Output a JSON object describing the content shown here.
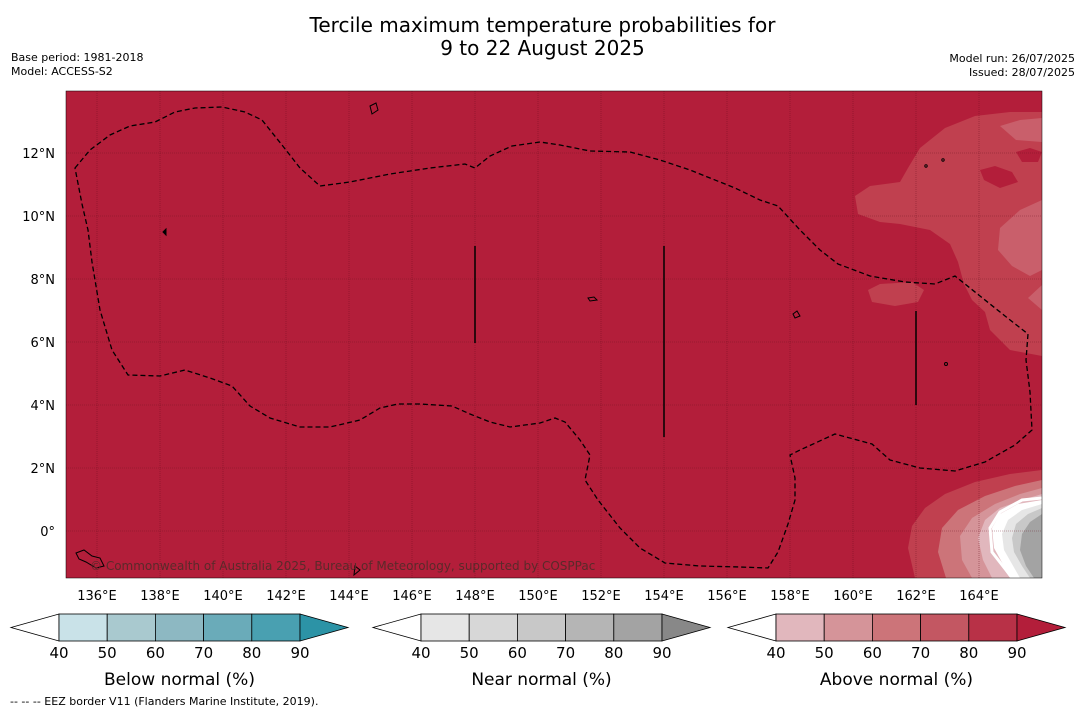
{
  "title": {
    "line1": "Tercile maximum temperature probabilities for",
    "line2": "9 to 22 August 2025"
  },
  "meta_left": {
    "base_period": "Base period: 1981-2018",
    "model": "Model: ACCESS-S2"
  },
  "meta_right": {
    "model_run": "Model run: 26/07/2025",
    "issued": "Issued: 28/07/2025"
  },
  "map": {
    "background_color": "#b31e3a",
    "lat_labels": [
      "12°N",
      "10°N",
      "8°N",
      "6°N",
      "4°N",
      "2°N",
      "0°"
    ],
    "lon_labels": [
      "136°E",
      "138°E",
      "140°E",
      "142°E",
      "144°E",
      "146°E",
      "148°E",
      "150°E",
      "152°E",
      "154°E",
      "156°E",
      "158°E",
      "160°E",
      "162°E",
      "164°E"
    ],
    "copyright": "© Commonwealth of Australia 2025, Bureau of Meteorology, supported by COSPPac"
  },
  "colorbars": [
    {
      "label": "Below normal (%)",
      "ticks": [
        "40",
        "50",
        "60",
        "70",
        "80",
        "90"
      ],
      "colors": [
        "#ffffff",
        "#c9e2e8",
        "#a9c9cf",
        "#8db8c2",
        "#6aabb9",
        "#49a0b1",
        "#2c93a6"
      ]
    },
    {
      "label": "Near normal (%)",
      "ticks": [
        "40",
        "50",
        "60",
        "70",
        "80",
        "90"
      ],
      "colors": [
        "#ffffff",
        "#e6e6e6",
        "#d7d7d7",
        "#c8c8c8",
        "#b5b5b5",
        "#a3a3a3",
        "#888888"
      ]
    },
    {
      "label": "Above normal (%)",
      "ticks": [
        "40",
        "50",
        "60",
        "70",
        "80",
        "90"
      ],
      "colors": [
        "#ffffff",
        "#e1b7bd",
        "#d59499",
        "#cc7479",
        "#c35762",
        "#b83147",
        "#b31e3a"
      ]
    }
  ],
  "footnote": "--  --  -- EEZ border V11 (Flanders Marine Institute, 2019)."
}
